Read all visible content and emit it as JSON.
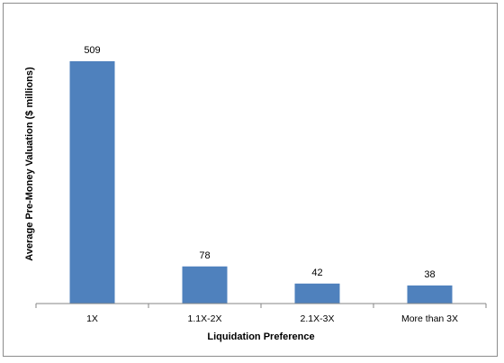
{
  "chart_data": {
    "type": "bar",
    "categories": [
      "1X",
      "1.1X-2X",
      "2.1X-3X",
      "More than 3X"
    ],
    "values": [
      509,
      78,
      42,
      38
    ],
    "title": "",
    "xlabel": "Liquidation Preference",
    "ylabel": "Average Pre-Money Valuation ($ millions)",
    "ylim": [
      0,
      509
    ],
    "grid": false,
    "legend": "none",
    "bar_color": "#4F81BD",
    "data_labels": [
      "509",
      "78",
      "42",
      "38"
    ]
  }
}
